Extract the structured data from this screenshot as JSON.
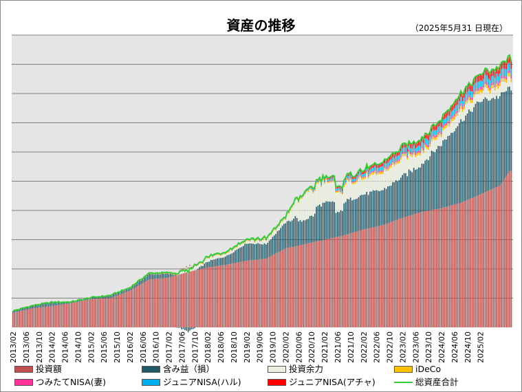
{
  "title": "資産の推移",
  "subtitle": "（2025年5月31 日現在）",
  "chart_data": {
    "type": "bar",
    "stacked": true,
    "grid": true,
    "x_ticks": [
      "2013/02",
      "2013/06",
      "2013/10",
      "2014/02",
      "2014/06",
      "2014/10",
      "2015/02",
      "2015/06",
      "2015/10",
      "2016/02",
      "2016/06",
      "2016/10",
      "2017/02",
      "2017/06",
      "2017/10",
      "2018/02",
      "2018/06",
      "2018/10",
      "2019/02",
      "2019/06",
      "2019/10",
      "2020/02",
      "2020/06",
      "2020/10",
      "2021/02",
      "2021/06",
      "2021/10",
      "2022/02",
      "2022/06",
      "2022/10",
      "2023/02",
      "2023/06",
      "2023/10",
      "2024/02",
      "2024/06",
      "2024/10",
      "2025/02"
    ],
    "ylim": [
      0,
      100
    ],
    "y_scale_note": "relative units (axis values not printed)",
    "series_anchors": {
      "invest": [
        [
          0,
          5
        ],
        [
          12,
          6.5
        ],
        [
          24,
          7.3
        ],
        [
          36,
          8.3
        ],
        [
          48,
          9.7
        ],
        [
          60,
          10
        ],
        [
          72,
          12.5
        ],
        [
          84,
          16.4
        ],
        [
          96,
          17
        ],
        [
          108,
          19
        ],
        [
          120,
          20.5
        ],
        [
          132,
          21.5
        ],
        [
          144,
          22.8
        ],
        [
          156,
          23.5
        ],
        [
          168,
          27
        ],
        [
          180,
          28.5
        ],
        [
          192,
          30
        ],
        [
          204,
          31.5
        ],
        [
          216,
          33.5
        ],
        [
          228,
          35
        ],
        [
          240,
          37.5
        ],
        [
          252,
          39.5
        ],
        [
          264,
          40.8
        ],
        [
          276,
          42.6
        ],
        [
          288,
          45.5
        ],
        [
          300,
          48.5
        ],
        [
          306,
          53.5
        ]
      ],
      "unrealized": [
        [
          0,
          0.6
        ],
        [
          12,
          0.9
        ],
        [
          24,
          1.2
        ],
        [
          36,
          0.3
        ],
        [
          48,
          0.3
        ],
        [
          60,
          0.7
        ],
        [
          72,
          0.8
        ],
        [
          84,
          1.8
        ],
        [
          96,
          1.3
        ],
        [
          108,
          -1.5
        ],
        [
          120,
          2
        ],
        [
          132,
          3
        ],
        [
          144,
          6
        ],
        [
          156,
          5
        ],
        [
          168,
          8.8
        ],
        [
          180,
          11
        ],
        [
          192,
          12.5
        ],
        [
          204,
          11.5
        ],
        [
          216,
          12
        ],
        [
          228,
          12
        ],
        [
          240,
          14
        ],
        [
          252,
          16.5
        ],
        [
          264,
          22
        ],
        [
          276,
          28
        ],
        [
          288,
          32
        ],
        [
          300,
          30.5
        ],
        [
          306,
          28.5
        ]
      ],
      "cash": [
        [
          0,
          0
        ],
        [
          100,
          0
        ],
        [
          110,
          1.5
        ],
        [
          120,
          1
        ],
        [
          132,
          1.2
        ],
        [
          144,
          0.8
        ],
        [
          156,
          1.2
        ],
        [
          168,
          1.5
        ],
        [
          180,
          9
        ],
        [
          192,
          7
        ],
        [
          204,
          6
        ],
        [
          216,
          5.5
        ],
        [
          228,
          5.5
        ],
        [
          240,
          6
        ],
        [
          252,
          4
        ],
        [
          264,
          3.5
        ],
        [
          276,
          3.5
        ],
        [
          288,
          3
        ],
        [
          306,
          3
        ]
      ],
      "ideco": [
        [
          0,
          0
        ],
        [
          36,
          0.02
        ],
        [
          180,
          0.4
        ],
        [
          240,
          0.8
        ],
        [
          306,
          1.2
        ]
      ],
      "tsumitate": [
        [
          0,
          0
        ],
        [
          180,
          0.05
        ],
        [
          240,
          0.6
        ],
        [
          306,
          0.9
        ]
      ],
      "junior_haru": [
        [
          0,
          0
        ],
        [
          176,
          0.2
        ],
        [
          240,
          1.5
        ],
        [
          306,
          2.5
        ]
      ],
      "junior_acha": [
        [
          0,
          0
        ],
        [
          176,
          0.2
        ],
        [
          240,
          1.5
        ],
        [
          306,
          2.5
        ]
      ]
    },
    "series": [
      {
        "key": "invest",
        "name": "投資額",
        "color": "#c0504d"
      },
      {
        "key": "unrealized",
        "name": "含み益（損）",
        "color": "#215968"
      },
      {
        "key": "cash",
        "name": "投資余力",
        "color": "#ebf1de"
      },
      {
        "key": "ideco",
        "name": "iDeCo",
        "color": "#ffc000"
      },
      {
        "key": "tsumitate",
        "name": "つみたてNISA(妻)",
        "color": "#ff3399"
      },
      {
        "key": "junior_haru",
        "name": "ジュニアNISA(ハル)",
        "color": "#00b0f0"
      },
      {
        "key": "junior_acha",
        "name": "ジュニアNISA(アチャ)",
        "color": "#ff0000"
      },
      {
        "key": "total",
        "name": "総資産合計",
        "color": "#33cc33",
        "type": "line"
      }
    ],
    "legend_position": "bottom"
  }
}
